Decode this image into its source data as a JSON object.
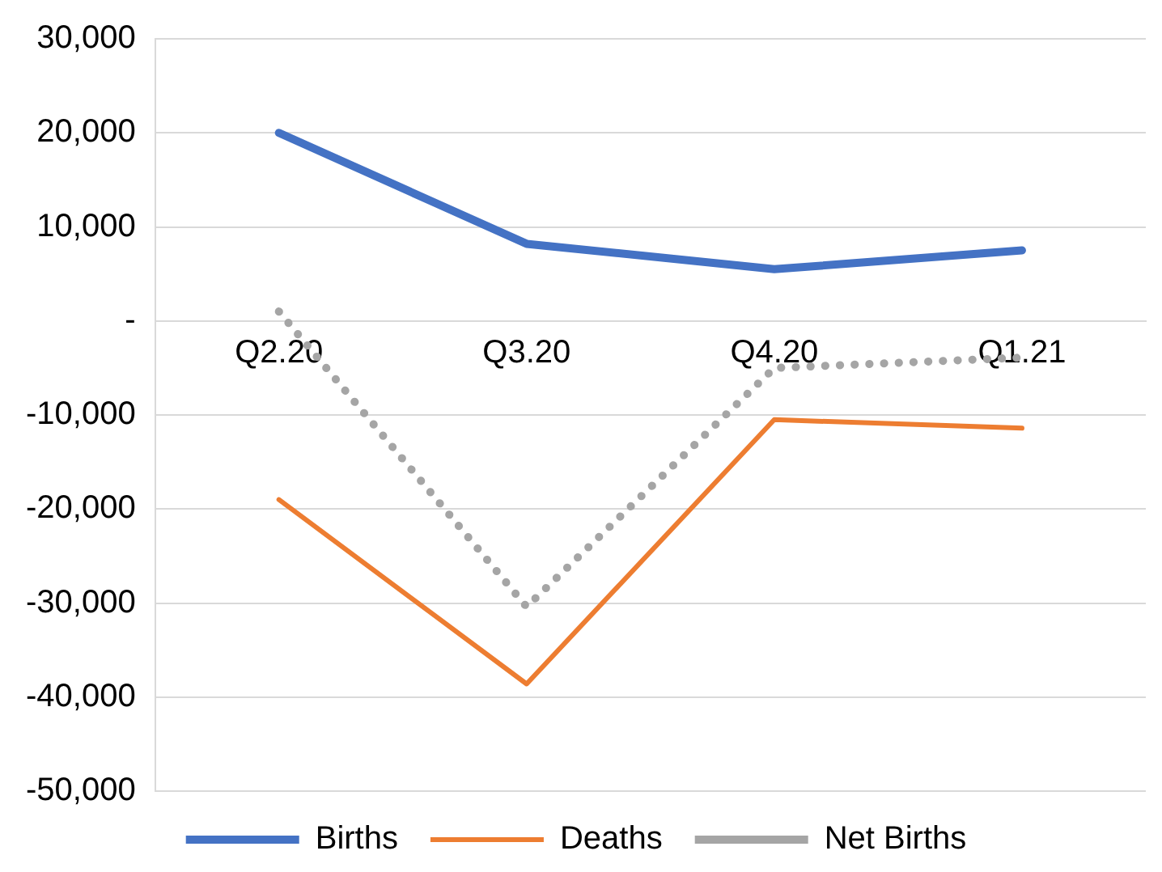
{
  "chart_data": {
    "type": "line",
    "categories": [
      "Q2.20",
      "Q3.20",
      "Q4.20",
      "Q1.21"
    ],
    "series": [
      {
        "name": "Births",
        "color": "#4472c4",
        "values": [
          20000,
          8200,
          5500,
          7500
        ],
        "line_style": "solid"
      },
      {
        "name": "Deaths",
        "color": "#ed7d31",
        "values": [
          -19000,
          -38600,
          -10500,
          -11400
        ],
        "line_style": "solid"
      },
      {
        "name": "Net Births",
        "color": "#a5a5a5",
        "values": [
          1000,
          -30400,
          -5000,
          -3900
        ],
        "line_style": "dotted"
      }
    ],
    "ylim": [
      -50000,
      30000
    ],
    "yticks": [
      {
        "value": -50000,
        "label": "-50,000"
      },
      {
        "value": -40000,
        "label": "-40,000"
      },
      {
        "value": -30000,
        "label": "-30,000"
      },
      {
        "value": -20000,
        "label": "-20,000"
      },
      {
        "value": -10000,
        "label": "-10,000"
      },
      {
        "value": 0,
        "label": "-"
      },
      {
        "value": 10000,
        "label": "10,000"
      },
      {
        "value": 20000,
        "label": "20,000"
      },
      {
        "value": 30000,
        "label": "30,000"
      }
    ],
    "grid": "y",
    "legend": "bottom",
    "marker": "none"
  }
}
